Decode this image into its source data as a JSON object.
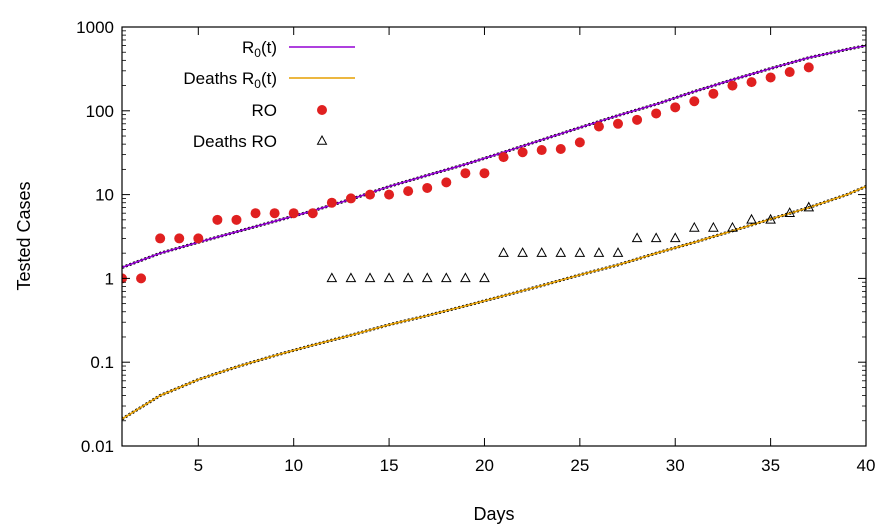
{
  "chart_data": {
    "type": "scatter",
    "title": "",
    "xlabel": "Days",
    "ylabel": "Tested Cases",
    "xlim": [
      1,
      40
    ],
    "ylim": [
      0.01,
      1000
    ],
    "y_scale": "log",
    "grid": false,
    "legend_position": "top-left",
    "x_ticks": [
      5,
      10,
      15,
      20,
      25,
      30,
      35,
      40
    ],
    "x_tick_labels": [
      "5",
      "10",
      "15",
      "20",
      "25",
      "30",
      "35",
      "40"
    ],
    "y_ticks": [
      0.01,
      0.1,
      1,
      10,
      100,
      1000
    ],
    "y_tick_labels": [
      "0.01",
      "0.1",
      "1",
      "10",
      "100",
      "1000"
    ],
    "series": [
      {
        "name": "R",
        "name_subscript": "0",
        "name_suffix": "(t)",
        "kind": "line",
        "color": "#9400d3",
        "x": [
          1,
          3,
          5,
          7,
          9,
          11,
          13,
          15,
          17,
          19,
          21,
          23,
          25,
          27,
          29,
          31,
          33,
          35,
          37,
          39,
          40
        ],
        "y": [
          1.35,
          2.0,
          2.7,
          3.6,
          4.8,
          6.4,
          8.8,
          12.5,
          17,
          23,
          32,
          45,
          63,
          88,
          120,
          170,
          235,
          320,
          430,
          540,
          600
        ]
      },
      {
        "name": "Deaths R",
        "name_subscript": "0",
        "name_suffix": "(t)",
        "kind": "line",
        "color": "#e69f00",
        "x": [
          1,
          3,
          5,
          7,
          9,
          11,
          13,
          15,
          17,
          19,
          21,
          23,
          25,
          27,
          29,
          31,
          33,
          35,
          37,
          39,
          40
        ],
        "y": [
          0.021,
          0.04,
          0.062,
          0.088,
          0.12,
          0.16,
          0.21,
          0.28,
          0.36,
          0.47,
          0.62,
          0.82,
          1.1,
          1.45,
          2.0,
          2.7,
          3.7,
          5.1,
          7.0,
          10.0,
          12.5
        ]
      },
      {
        "name": "RO",
        "kind": "points",
        "marker": "circle",
        "color": "#e02020",
        "x": [
          1,
          2,
          3,
          4,
          5,
          6,
          7,
          8,
          9,
          10,
          11,
          12,
          13,
          14,
          15,
          16,
          17,
          18,
          19,
          20,
          21,
          22,
          23,
          24,
          25,
          26,
          27,
          28,
          29,
          30,
          31,
          32,
          33,
          34,
          35,
          36,
          37
        ],
        "y": [
          1,
          1,
          3,
          3,
          3,
          5,
          5,
          6,
          6,
          6,
          6,
          8,
          9,
          10,
          10,
          11,
          12,
          14,
          18,
          18,
          28,
          32,
          34,
          35,
          42,
          65,
          70,
          78,
          93,
          110,
          130,
          160,
          200,
          220,
          250,
          290,
          330
        ]
      },
      {
        "name": "Deaths RO",
        "kind": "points",
        "marker": "triangle",
        "color": "#000000",
        "x": [
          12,
          13,
          14,
          15,
          16,
          17,
          18,
          19,
          20,
          21,
          22,
          23,
          24,
          25,
          26,
          27,
          28,
          29,
          30,
          31,
          32,
          33,
          34,
          35,
          36,
          37
        ],
        "y": [
          1,
          1,
          1,
          1,
          1,
          1,
          1,
          1,
          1,
          2,
          2,
          2,
          2,
          2,
          2,
          2,
          3,
          3,
          3,
          4,
          4,
          4,
          5,
          5,
          6,
          7
        ]
      }
    ]
  }
}
